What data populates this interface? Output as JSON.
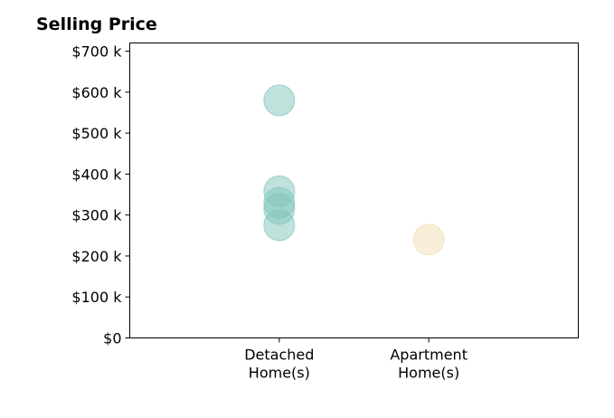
{
  "chart_data": {
    "type": "scatter",
    "title": "Selling Price",
    "xlabel": "",
    "ylabel": "",
    "categories": [
      [
        "Detached",
        "Home(s)"
      ],
      [
        "Apartment",
        "Home(s)"
      ]
    ],
    "xlim": [
      -1,
      2
    ],
    "ylim": [
      0,
      720000
    ],
    "y_ticks": [
      0,
      100000,
      200000,
      300000,
      400000,
      500000,
      600000,
      700000
    ],
    "y_tick_labels": [
      "$0",
      "$100 k",
      "$200 k",
      "$300 k",
      "$400 k",
      "$500 k",
      "$600 k",
      "$700 k"
    ],
    "grid": false,
    "series": [
      {
        "category": 0,
        "color": "#7fc6bc",
        "values": [
          580000,
          358000,
          330000,
          315000,
          275000
        ]
      },
      {
        "category": 1,
        "color": "#f3ddb0",
        "values": [
          240000
        ]
      }
    ]
  }
}
